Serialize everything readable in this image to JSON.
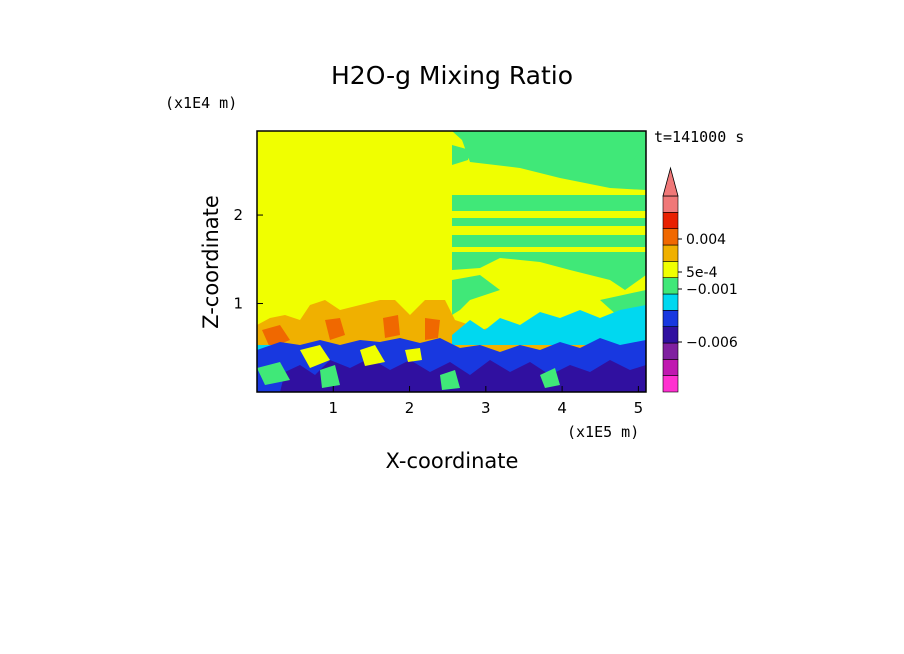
{
  "chart_data": {
    "type": "heatmap",
    "title": "H2O-g Mixing Ratio",
    "xlabel": "X-coordinate",
    "ylabel": "Z-coordinate",
    "x_unit": "(x1E5 m)",
    "y_unit": "(x1E4 m)",
    "time_label": "t=141000 s",
    "xlim": [
      0.0,
      5.1
    ],
    "ylim": [
      0.0,
      2.95
    ],
    "x_ticks": [
      "1",
      "2",
      "3",
      "4",
      "5"
    ],
    "x_tick_values": [
      1,
      2,
      3,
      4,
      5
    ],
    "y_ticks": [
      "1",
      "2"
    ],
    "y_tick_values": [
      1,
      2
    ],
    "colorbar": {
      "extend": "max",
      "labels": [
        "0.004",
        "5e-4",
        "−0.001",
        "−0.006"
      ],
      "label_values": [
        0.004,
        0.0005,
        -0.001,
        -0.006
      ],
      "colors": [
        "#ff30d0",
        "#c018b0",
        "#8020a0",
        "#3010a0",
        "#1838e0",
        "#00d8f0",
        "#40e878",
        "#f0ff00",
        "#f0b000",
        "#f06800",
        "#e82000",
        "#f07878"
      ]
    },
    "regions": {
      "background": "#f0ff00",
      "upper_right_layers": "#40e878",
      "boundary_layer": "#1838e0",
      "deep_layer": "#3010a0",
      "transition": "#00d8f0",
      "plumes": "#f0b000",
      "plume_cores": "#f06800"
    }
  }
}
